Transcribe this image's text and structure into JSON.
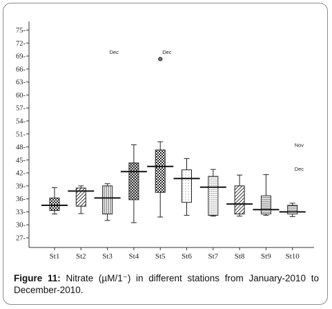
{
  "caption": {
    "label": "Figure 11:",
    "text": "Nitrate (µM/1⁻) in different stations from January-2010 to December-2010."
  },
  "chart_data": {
    "type": "boxplot",
    "y_ticks": [
      27,
      30,
      33,
      36,
      39,
      42,
      45,
      48,
      51,
      54,
      57,
      60,
      63,
      66,
      69,
      72,
      75
    ],
    "ylim": [
      24,
      77
    ],
    "categories": [
      "St1",
      "St2",
      "St3",
      "St4",
      "St5",
      "St6",
      "St7",
      "St8",
      "St9",
      "St10"
    ],
    "boxes": [
      {
        "station": "St1",
        "whisker_low": 32.5,
        "q1": 33.3,
        "median": 34.5,
        "q3": 36.2,
        "whisker_high": 38.6,
        "pattern": "checker"
      },
      {
        "station": "St2",
        "whisker_low": 32.6,
        "q1": 34.3,
        "median": 37.8,
        "q3": 38.5,
        "whisker_high": 39.0,
        "pattern": "diagonal"
      },
      {
        "station": "St3",
        "whisker_low": 31.0,
        "q1": 32.5,
        "median": 36.2,
        "q3": 39.0,
        "whisker_high": 39.5,
        "pattern": "vertical"
      },
      {
        "station": "St4",
        "whisker_low": 30.5,
        "q1": 35.8,
        "median": 42.3,
        "q3": 44.3,
        "whisker_high": 48.5,
        "pattern": "crosshatch"
      },
      {
        "station": "St5",
        "whisker_low": 31.8,
        "q1": 37.5,
        "median": 43.5,
        "q3": 47.3,
        "whisker_high": 49.2,
        "pattern": "checker"
      },
      {
        "station": "St6",
        "whisker_low": 32.2,
        "q1": 35.2,
        "median": 40.7,
        "q3": 42.7,
        "whisker_high": 45.3,
        "pattern": "dots"
      },
      {
        "station": "St7",
        "whisker_low": 32.0,
        "q1": 32.2,
        "median": 38.7,
        "q3": 41.2,
        "whisker_high": 42.8,
        "pattern": "dots-dense"
      },
      {
        "station": "St8",
        "whisker_low": 32.0,
        "q1": 32.5,
        "median": 34.8,
        "q3": 39.0,
        "whisker_high": 41.5,
        "pattern": "diagonal"
      },
      {
        "station": "St9",
        "whisker_low": 32.2,
        "q1": 32.5,
        "median": 33.5,
        "q3": 36.7,
        "whisker_high": 41.6,
        "pattern": "horizontal"
      },
      {
        "station": "St10",
        "whisker_low": 31.9,
        "q1": 32.5,
        "median": 33.0,
        "q3": 34.5,
        "whisker_high": 35.0,
        "pattern": "horizontal"
      }
    ],
    "outliers": [
      {
        "station": "St5",
        "value": 68.3
      }
    ],
    "annotations": [
      {
        "text": "Dec",
        "station": "St3",
        "value": 70.0
      },
      {
        "text": "Dec",
        "station": "St5",
        "value": 70.0
      },
      {
        "text": "Nov",
        "station": "St10",
        "value": 48.5
      },
      {
        "text": "Dec",
        "station": "St10",
        "value": 43.0
      }
    ]
  }
}
